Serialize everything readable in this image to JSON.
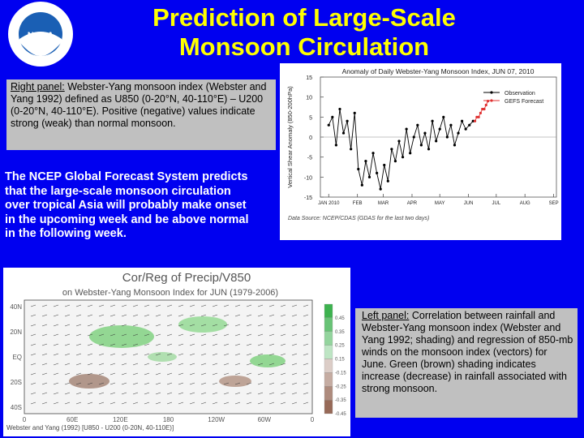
{
  "header": {
    "title_lines": [
      "Prediction of Large-Scale",
      "Monsoon Circulation"
    ]
  },
  "right_caption": {
    "label": "Right panel:",
    "text": " Webster-Yang monsoon index (Webster and Yang 1992) defined as U850 (0-20°N, 40-110°E) – U200 (0-20°N, 40-110°E). Positive (negative) values indicate strong (weak) than normal monsoon."
  },
  "body_text": "The NCEP Global Forecast System predicts that the large-scale monsoon circulation over tropical Asia will probably  make onset in the upcoming week  and be above normal in the following week.",
  "left_caption": {
    "label": "Left panel:",
    "text": " Correlation between rainfall and Webster-Yang monsoon index (Webster and Yang 1992; shading) and regression of 850-mb winds on the monsoon index (vectors) for June. Green (brown) shading indicates increase (decrease) in rainfall associated with strong monsoon."
  },
  "chart_data": {
    "type": "line",
    "title": "Anomaly of Daily Webster-Yang Monsoon Index, JUN 07, 2010",
    "y_label": "Vertical Shear Anomaly (850-200hPa)",
    "source": "Data Source: NCEP/CDAS (GDAS for the last two days)",
    "xlim": [
      -9,
      246
    ],
    "xticks": [
      {
        "value": 0,
        "label": "JAN 2010"
      },
      {
        "value": 31,
        "label": "FEB"
      },
      {
        "value": 59,
        "label": "MAR"
      },
      {
        "value": 90,
        "label": "APR"
      },
      {
        "value": 120,
        "label": "MAY"
      },
      {
        "value": 151,
        "label": "JUN"
      },
      {
        "value": 181,
        "label": "JUL"
      },
      {
        "value": 212,
        "label": "AUG"
      },
      {
        "value": 243,
        "label": "SEP"
      }
    ],
    "ylim": [
      -15,
      15
    ],
    "yticks": [
      -15,
      -10,
      -5,
      0,
      5,
      10,
      15
    ],
    "series": [
      {
        "name": "Observation",
        "color": "#000000",
        "x": [
          0,
          4,
          8,
          12,
          16,
          20,
          24,
          28,
          32,
          36,
          40,
          44,
          48,
          52,
          56,
          60,
          64,
          68,
          72,
          76,
          80,
          84,
          88,
          92,
          96,
          100,
          104,
          108,
          112,
          116,
          120,
          124,
          128,
          132,
          136,
          140,
          144,
          148,
          152,
          156
        ],
        "values": [
          3,
          5,
          -2,
          7,
          1,
          4,
          -3,
          6,
          -8,
          -12,
          -6,
          -10,
          -4,
          -9,
          -13,
          -7,
          -11,
          -3,
          -6,
          -1,
          -5,
          2,
          -4,
          0,
          3,
          -2,
          1,
          -3,
          4,
          -1,
          2,
          5,
          0,
          3,
          -2,
          1,
          4,
          2,
          3,
          4
        ]
      },
      {
        "name": "GEFS Forecast",
        "color": "#e03030",
        "x": [
          158,
          160,
          162,
          164,
          166,
          168,
          170,
          172
        ],
        "values": [
          4,
          5,
          5,
          6,
          7,
          7,
          8,
          9
        ]
      }
    ]
  },
  "map": {
    "title_lines": [
      "Cor/Reg of Precip/V850",
      "on Webster-Yang Monsoon Index for JUN (1979-2006)"
    ],
    "lat_labels": [
      "40N",
      "20N",
      "EQ",
      "20S",
      "40S"
    ],
    "lon_labels": [
      "0",
      "60E",
      "120E",
      "180",
      "120W",
      "60W",
      "0"
    ],
    "colorbar": [
      0.45,
      0.35,
      0.25,
      0.15,
      -0.15,
      -0.25,
      -0.35,
      -0.45
    ],
    "footer": "Webster and Yang (1992) [U850 - U200 (0-20N, 40-110E)]"
  }
}
